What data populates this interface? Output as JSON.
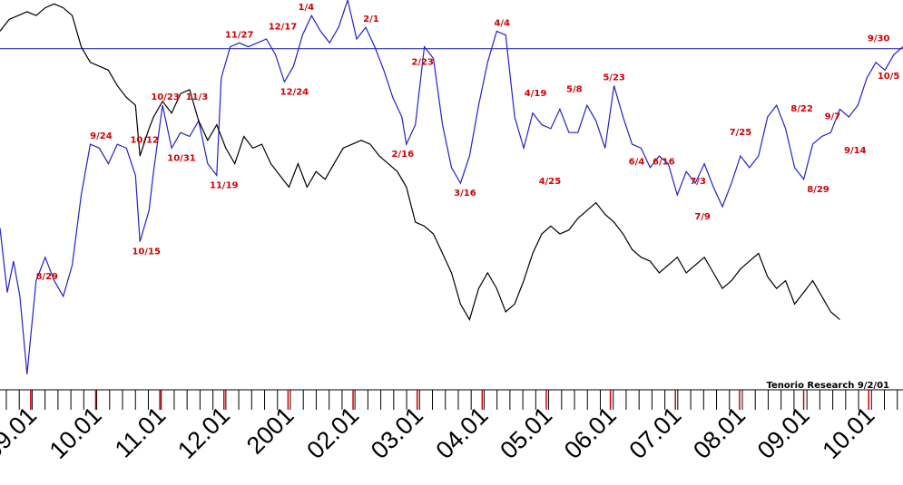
{
  "chart_data": {
    "type": "line",
    "credit": "Tenorio Research 9/2/01",
    "ylim": [
      0,
      100
    ],
    "xlim": [
      0,
      100
    ],
    "reference_line_y": 87.5,
    "x_ticks": [
      {
        "x": 3.4,
        "label": "09.01"
      },
      {
        "x": 10.6,
        "label": "10.01"
      },
      {
        "x": 17.7,
        "label": "11.01"
      },
      {
        "x": 24.8,
        "label": "12.01"
      },
      {
        "x": 31.9,
        "label": "2001"
      },
      {
        "x": 39.1,
        "label": "02.01"
      },
      {
        "x": 46.2,
        "label": "03.01"
      },
      {
        "x": 53.4,
        "label": "04.01"
      },
      {
        "x": 60.5,
        "label": "05.01"
      },
      {
        "x": 67.6,
        "label": "06.01"
      },
      {
        "x": 74.8,
        "label": "07.01"
      },
      {
        "x": 81.9,
        "label": "08.01"
      },
      {
        "x": 89.0,
        "label": "09.01"
      },
      {
        "x": 96.2,
        "label": "10.01"
      }
    ],
    "series": [
      {
        "color": "#2222cc",
        "points": [
          [
            0,
            41.5
          ],
          [
            0.8,
            25
          ],
          [
            1.5,
            33
          ],
          [
            2.2,
            24
          ],
          [
            3,
            4
          ],
          [
            4,
            28
          ],
          [
            5,
            34
          ],
          [
            6,
            28
          ],
          [
            7,
            24
          ],
          [
            8,
            32
          ],
          [
            9,
            50
          ],
          [
            10,
            63
          ],
          [
            11,
            62
          ],
          [
            12,
            58
          ],
          [
            13,
            63
          ],
          [
            14,
            62
          ],
          [
            15,
            55
          ],
          [
            15.5,
            38
          ],
          [
            16.5,
            46
          ],
          [
            17,
            56
          ],
          [
            18,
            73
          ],
          [
            19,
            62
          ],
          [
            20,
            66
          ],
          [
            21,
            65
          ],
          [
            22,
            69
          ],
          [
            23,
            58
          ],
          [
            24,
            55
          ],
          [
            24.5,
            80
          ],
          [
            25.5,
            88
          ],
          [
            26.5,
            89
          ],
          [
            27.5,
            88
          ],
          [
            28.5,
            89
          ],
          [
            29.5,
            90
          ],
          [
            30.5,
            86
          ],
          [
            31.5,
            79
          ],
          [
            32.5,
            83
          ],
          [
            33.5,
            91
          ],
          [
            34.5,
            96
          ],
          [
            35.5,
            92
          ],
          [
            36.5,
            89
          ],
          [
            37.5,
            93
          ],
          [
            38.5,
            100
          ],
          [
            39.5,
            90
          ],
          [
            40.5,
            93
          ],
          [
            41.5,
            88
          ],
          [
            42.5,
            82
          ],
          [
            43.5,
            75
          ],
          [
            44.5,
            70
          ],
          [
            45,
            63
          ],
          [
            46,
            68
          ],
          [
            47,
            88
          ],
          [
            48,
            85
          ],
          [
            49,
            68
          ],
          [
            50,
            57
          ],
          [
            51,
            53
          ],
          [
            52,
            60
          ],
          [
            53,
            73
          ],
          [
            54,
            84
          ],
          [
            55,
            92
          ],
          [
            56,
            91
          ],
          [
            57,
            70
          ],
          [
            58,
            62
          ],
          [
            59,
            71
          ],
          [
            60,
            68
          ],
          [
            61,
            67
          ],
          [
            62,
            72
          ],
          [
            63,
            66
          ],
          [
            64,
            66
          ],
          [
            65,
            73
          ],
          [
            66,
            69
          ],
          [
            67,
            62
          ],
          [
            68,
            78
          ],
          [
            69,
            70
          ],
          [
            70,
            63
          ],
          [
            71,
            62
          ],
          [
            72,
            57
          ],
          [
            73,
            60
          ],
          [
            74,
            58
          ],
          [
            75,
            50
          ],
          [
            76,
            56
          ],
          [
            77,
            53
          ],
          [
            78,
            58
          ],
          [
            79,
            52
          ],
          [
            80,
            47
          ],
          [
            81,
            53
          ],
          [
            82,
            60
          ],
          [
            83,
            57
          ],
          [
            84,
            60
          ],
          [
            85,
            70
          ],
          [
            86,
            73
          ],
          [
            87,
            67
          ],
          [
            88,
            57
          ],
          [
            89,
            54
          ],
          [
            90,
            63
          ],
          [
            91,
            65
          ],
          [
            92,
            66
          ],
          [
            93,
            72
          ],
          [
            94,
            70
          ],
          [
            95,
            73
          ],
          [
            96,
            80
          ],
          [
            97,
            84
          ],
          [
            98,
            82
          ],
          [
            99,
            86
          ],
          [
            100,
            88
          ]
        ]
      },
      {
        "color": "#000000",
        "points": [
          [
            0,
            92
          ],
          [
            1,
            95
          ],
          [
            2,
            96
          ],
          [
            3,
            97
          ],
          [
            4,
            96
          ],
          [
            5,
            98
          ],
          [
            6,
            99
          ],
          [
            7,
            98
          ],
          [
            8,
            96
          ],
          [
            9,
            88
          ],
          [
            10,
            84
          ],
          [
            11,
            83
          ],
          [
            12,
            82
          ],
          [
            13,
            78
          ],
          [
            14,
            75
          ],
          [
            15,
            73
          ],
          [
            15.5,
            60
          ],
          [
            16.5,
            67
          ],
          [
            17,
            70
          ],
          [
            18,
            74
          ],
          [
            19,
            71
          ],
          [
            20,
            76
          ],
          [
            21,
            77
          ],
          [
            22,
            69
          ],
          [
            23,
            64
          ],
          [
            24,
            68
          ],
          [
            25,
            62
          ],
          [
            26,
            58
          ],
          [
            27,
            65
          ],
          [
            28,
            62
          ],
          [
            29,
            63
          ],
          [
            30,
            58
          ],
          [
            31,
            55
          ],
          [
            32,
            52
          ],
          [
            33,
            58
          ],
          [
            34,
            52
          ],
          [
            35,
            56
          ],
          [
            36,
            54
          ],
          [
            37,
            58
          ],
          [
            38,
            62
          ],
          [
            39,
            63
          ],
          [
            40,
            64
          ],
          [
            41,
            63
          ],
          [
            42,
            60
          ],
          [
            43,
            58
          ],
          [
            44,
            56
          ],
          [
            45,
            52
          ],
          [
            46,
            43
          ],
          [
            47,
            42
          ],
          [
            48,
            40
          ],
          [
            49,
            35
          ],
          [
            50,
            30
          ],
          [
            51,
            22
          ],
          [
            52,
            18
          ],
          [
            53,
            26
          ],
          [
            54,
            30
          ],
          [
            55,
            26
          ],
          [
            56,
            20
          ],
          [
            57,
            22
          ],
          [
            58,
            28
          ],
          [
            59,
            35
          ],
          [
            60,
            40
          ],
          [
            61,
            42
          ],
          [
            62,
            40
          ],
          [
            63,
            41
          ],
          [
            64,
            44
          ],
          [
            65,
            46
          ],
          [
            66,
            48
          ],
          [
            67,
            45
          ],
          [
            68,
            43
          ],
          [
            69,
            40
          ],
          [
            70,
            36
          ],
          [
            71,
            34
          ],
          [
            72,
            33
          ],
          [
            73,
            30
          ],
          [
            74,
            32
          ],
          [
            75,
            34
          ],
          [
            76,
            30
          ],
          [
            77,
            32
          ],
          [
            78,
            34
          ],
          [
            79,
            30
          ],
          [
            80,
            26
          ],
          [
            81,
            28
          ],
          [
            82,
            31
          ],
          [
            83,
            33
          ],
          [
            84,
            35
          ],
          [
            85,
            29
          ],
          [
            86,
            26
          ],
          [
            87,
            28
          ],
          [
            88,
            22
          ],
          [
            89,
            25
          ],
          [
            90,
            28
          ],
          [
            91,
            24
          ],
          [
            92,
            20
          ],
          [
            93,
            18
          ]
        ]
      }
    ],
    "annotations": [
      {
        "label": "8/29",
        "x": 5.2,
        "y": 27,
        "pos": "above"
      },
      {
        "label": "9/24",
        "x": 11.2,
        "y": 63,
        "pos": "above"
      },
      {
        "label": "10/12",
        "x": 16.0,
        "y": 62,
        "pos": "above"
      },
      {
        "label": "10/15",
        "x": 16.2,
        "y": 38,
        "pos": "below"
      },
      {
        "label": "10/23",
        "x": 18.3,
        "y": 73,
        "pos": "above"
      },
      {
        "label": "10/31",
        "x": 20.1,
        "y": 62,
        "pos": "below"
      },
      {
        "label": "11/3",
        "x": 21.8,
        "y": 73,
        "pos": "above"
      },
      {
        "label": "11/19",
        "x": 24.8,
        "y": 55,
        "pos": "below"
      },
      {
        "label": "11/27",
        "x": 26.5,
        "y": 89,
        "pos": "above"
      },
      {
        "label": "12/17",
        "x": 31.3,
        "y": 91,
        "pos": "above"
      },
      {
        "label": "12/24",
        "x": 32.6,
        "y": 79,
        "pos": "below"
      },
      {
        "label": "1/4",
        "x": 33.9,
        "y": 96,
        "pos": "above"
      },
      {
        "label": "2/1",
        "x": 41.1,
        "y": 93,
        "pos": "above"
      },
      {
        "label": "2/23",
        "x": 46.8,
        "y": 82,
        "pos": "above"
      },
      {
        "label": "2/16",
        "x": 44.6,
        "y": 63,
        "pos": "below"
      },
      {
        "label": "3/16",
        "x": 51.5,
        "y": 53,
        "pos": "below"
      },
      {
        "label": "4/4",
        "x": 55.6,
        "y": 92,
        "pos": "above"
      },
      {
        "label": "4/19",
        "x": 59.3,
        "y": 74,
        "pos": "above"
      },
      {
        "label": "4/25",
        "x": 60.9,
        "y": 56,
        "pos": "below"
      },
      {
        "label": "5/8",
        "x": 63.6,
        "y": 75,
        "pos": "above"
      },
      {
        "label": "5/23",
        "x": 68.0,
        "y": 78,
        "pos": "above"
      },
      {
        "label": "6/4",
        "x": 70.5,
        "y": 61,
        "pos": "below"
      },
      {
        "label": "6/16",
        "x": 73.5,
        "y": 61,
        "pos": "below"
      },
      {
        "label": "7/3",
        "x": 77.3,
        "y": 56,
        "pos": "below"
      },
      {
        "label": "7/9",
        "x": 77.8,
        "y": 47,
        "pos": "below"
      },
      {
        "label": "7/25",
        "x": 82.0,
        "y": 64,
        "pos": "above"
      },
      {
        "label": "8/22",
        "x": 88.8,
        "y": 70,
        "pos": "above"
      },
      {
        "label": "8/29",
        "x": 90.6,
        "y": 54,
        "pos": "below"
      },
      {
        "label": "9/7",
        "x": 92.2,
        "y": 68,
        "pos": "above"
      },
      {
        "label": "9/14",
        "x": 94.7,
        "y": 64,
        "pos": "below"
      },
      {
        "label": "9/30",
        "x": 97.3,
        "y": 88,
        "pos": "above"
      },
      {
        "label": "10/5",
        "x": 98.4,
        "y": 83,
        "pos": "below"
      }
    ]
  }
}
